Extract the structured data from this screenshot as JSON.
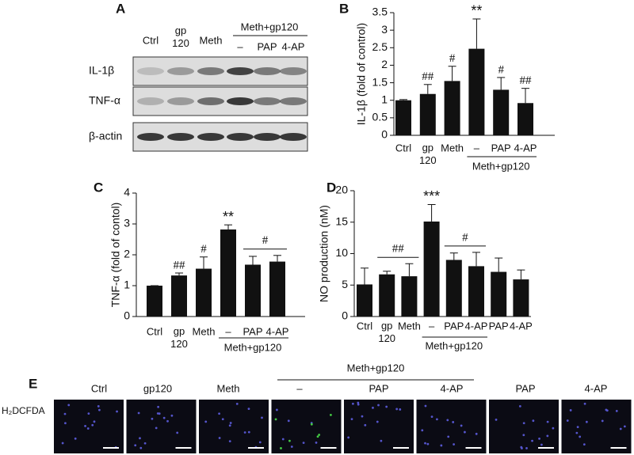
{
  "panel_a": {
    "label": "A",
    "lanes": [
      "Ctrl",
      "gp\n120",
      "Meth",
      "–",
      "PAP",
      "4-AP"
    ],
    "group": "Meth+gp120",
    "rows": [
      "IL-1β",
      "TNF-α",
      "β-actin"
    ]
  },
  "chart_data": [
    {
      "type": "bar",
      "panel_label": "B",
      "ylabel": "IL-1β (fold of control)",
      "categories": [
        "Ctrl",
        "gp\n120",
        "Meth",
        "–",
        "PAP",
        "4-AP"
      ],
      "values": [
        1.0,
        1.18,
        1.55,
        2.47,
        1.3,
        0.92
      ],
      "errors": [
        0.02,
        0.27,
        0.42,
        0.85,
        0.35,
        0.42
      ],
      "color": "#111111",
      "ylim": [
        0,
        3.5
      ],
      "yticks": [
        0,
        0.5,
        1,
        1.5,
        2,
        2.5,
        3,
        3.5
      ],
      "annotations": [
        {
          "text": "##",
          "from": 1,
          "to": 1
        },
        {
          "text": "#",
          "from": 2,
          "to": 2
        },
        {
          "text": "**",
          "from": 3,
          "to": 3
        },
        {
          "text": "#",
          "from": 4,
          "to": 4
        },
        {
          "text": "##",
          "from": 5,
          "to": 5
        }
      ],
      "group_label": {
        "text": "Meth+gp120",
        "from": 3,
        "to": 5
      }
    },
    {
      "type": "bar",
      "panel_label": "C",
      "ylabel": "TNF-α (fold of contol)",
      "categories": [
        "Ctrl",
        "gp\n120",
        "Meth",
        "–",
        "PAP",
        "4-AP"
      ],
      "values": [
        1.0,
        1.33,
        1.55,
        2.82,
        1.68,
        1.78
      ],
      "errors": [
        0.0,
        0.08,
        0.38,
        0.15,
        0.27,
        0.2
      ],
      "color": "#111111",
      "ylim": [
        0,
        4
      ],
      "yticks": [
        0,
        1,
        2,
        3,
        4
      ],
      "annotations": [
        {
          "text": "##",
          "from": 1,
          "to": 1
        },
        {
          "text": "#",
          "from": 2,
          "to": 2
        },
        {
          "text": "**",
          "from": 3,
          "to": 3
        },
        {
          "text": "#",
          "from": 4,
          "to": 5
        }
      ],
      "group_label": {
        "text": "Meth+gp120",
        "from": 3,
        "to": 5
      }
    },
    {
      "type": "bar",
      "panel_label": "D",
      "ylabel": "NO production (nM)",
      "categories": [
        "Ctrl",
        "gp\n120",
        "Meth",
        "–",
        "PAP",
        "4-AP",
        "PAP",
        "4-AP"
      ],
      "values": [
        5.1,
        6.7,
        6.4,
        15.1,
        9.0,
        8.0,
        7.1,
        5.9
      ],
      "errors": [
        2.6,
        0.5,
        2.0,
        2.7,
        1.1,
        2.2,
        2.2,
        1.5
      ],
      "color": "#111111",
      "ylim": [
        0,
        20
      ],
      "yticks": [
        0,
        5,
        10,
        15,
        20
      ],
      "annotations": [
        {
          "text": "##",
          "from": 1,
          "to": 2
        },
        {
          "text": "***",
          "from": 3,
          "to": 3
        },
        {
          "text": "#",
          "from": 4,
          "to": 5
        }
      ],
      "group_label": {
        "text": "Meth+gp120",
        "from": 3,
        "to": 5
      }
    }
  ],
  "panel_e": {
    "label": "E",
    "group": "Meth+gp120",
    "columns": [
      "Ctrl",
      "gp120",
      "Meth",
      "–",
      "PAP",
      "4-AP",
      "PAP",
      "4-AP"
    ],
    "row": "H₂DCFDA"
  }
}
